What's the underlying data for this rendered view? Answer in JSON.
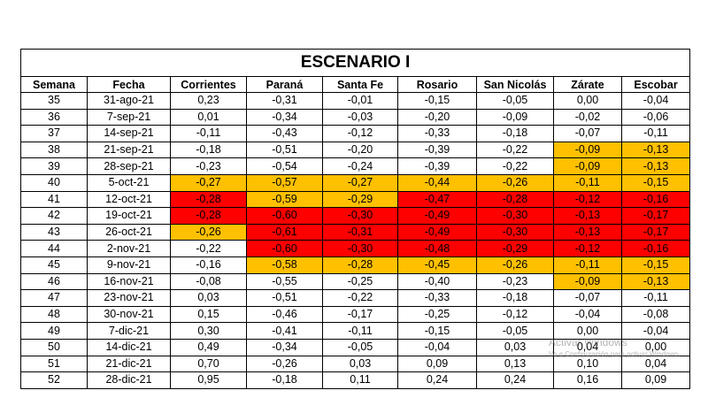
{
  "title": "ESCENARIO I",
  "headers": [
    "Semana",
    "Fecha",
    "Corrientes",
    "Paraná",
    "Santa Fe",
    "Rosario",
    "San Nicolás",
    "Zárate",
    "Escobar"
  ],
  "colors": {
    "orange": "#FFC000",
    "red": "#FF0000"
  },
  "rows": [
    {
      "semana": "35",
      "fecha": "31-ago-21",
      "values": [
        "0,23",
        "-0,31",
        "-0,01",
        "-0,15",
        "-0,05",
        "0,00",
        "-0,04"
      ],
      "fill": [
        "",
        "",
        "",
        "",
        "",
        "",
        ""
      ]
    },
    {
      "semana": "36",
      "fecha": "7-sep-21",
      "values": [
        "0,01",
        "-0,34",
        "-0,03",
        "-0,20",
        "-0,09",
        "-0,02",
        "-0,06"
      ],
      "fill": [
        "",
        "",
        "",
        "",
        "",
        "",
        ""
      ]
    },
    {
      "semana": "37",
      "fecha": "14-sep-21",
      "values": [
        "-0,11",
        "-0,43",
        "-0,12",
        "-0,33",
        "-0,18",
        "-0,07",
        "-0,11"
      ],
      "fill": [
        "",
        "",
        "",
        "",
        "",
        "",
        ""
      ]
    },
    {
      "semana": "38",
      "fecha": "21-sep-21",
      "values": [
        "-0,18",
        "-0,51",
        "-0,20",
        "-0,39",
        "-0,22",
        "-0,09",
        "-0,13"
      ],
      "fill": [
        "",
        "",
        "",
        "",
        "",
        "o",
        "o"
      ]
    },
    {
      "semana": "39",
      "fecha": "28-sep-21",
      "values": [
        "-0,23",
        "-0,54",
        "-0,24",
        "-0,39",
        "-0,22",
        "-0,09",
        "-0,13"
      ],
      "fill": [
        "",
        "",
        "",
        "",
        "",
        "o",
        "o"
      ]
    },
    {
      "semana": "40",
      "fecha": "5-oct-21",
      "values": [
        "-0,27",
        "-0,57",
        "-0,27",
        "-0,44",
        "-0,26",
        "-0,11",
        "-0,15"
      ],
      "fill": [
        "o",
        "o",
        "o",
        "o",
        "o",
        "o",
        "o"
      ]
    },
    {
      "semana": "41",
      "fecha": "12-oct-21",
      "values": [
        "-0,28",
        "-0,59",
        "-0,29",
        "-0,47",
        "-0,28",
        "-0,12",
        "-0,16"
      ],
      "fill": [
        "r",
        "o",
        "o",
        "r",
        "r",
        "r",
        "r"
      ]
    },
    {
      "semana": "42",
      "fecha": "19-oct-21",
      "values": [
        "-0,28",
        "-0,60",
        "-0,30",
        "-0,49",
        "-0,30",
        "-0,13",
        "-0,17"
      ],
      "fill": [
        "r",
        "r",
        "r",
        "r",
        "r",
        "r",
        "r"
      ]
    },
    {
      "semana": "43",
      "fecha": "26-oct-21",
      "values": [
        "-0,26",
        "-0,61",
        "-0,31",
        "-0,49",
        "-0,30",
        "-0,13",
        "-0,17"
      ],
      "fill": [
        "o",
        "r",
        "r",
        "r",
        "r",
        "r",
        "r"
      ]
    },
    {
      "semana": "44",
      "fecha": "2-nov-21",
      "values": [
        "-0,22",
        "-0,60",
        "-0,30",
        "-0,48",
        "-0,29",
        "-0,12",
        "-0,16"
      ],
      "fill": [
        "",
        "r",
        "r",
        "r",
        "r",
        "r",
        "r"
      ]
    },
    {
      "semana": "45",
      "fecha": "9-nov-21",
      "values": [
        "-0,16",
        "-0,58",
        "-0,28",
        "-0,45",
        "-0,26",
        "-0,11",
        "-0,15"
      ],
      "fill": [
        "",
        "o",
        "o",
        "o",
        "o",
        "o",
        "o"
      ]
    },
    {
      "semana": "46",
      "fecha": "16-nov-21",
      "values": [
        "-0,08",
        "-0,55",
        "-0,25",
        "-0,40",
        "-0,23",
        "-0,09",
        "-0,13"
      ],
      "fill": [
        "",
        "",
        "",
        "",
        "",
        "o",
        "o"
      ]
    },
    {
      "semana": "47",
      "fecha": "23-nov-21",
      "values": [
        "0,03",
        "-0,51",
        "-0,22",
        "-0,33",
        "-0,18",
        "-0,07",
        "-0,11"
      ],
      "fill": [
        "",
        "",
        "",
        "",
        "",
        "",
        ""
      ]
    },
    {
      "semana": "48",
      "fecha": "30-nov-21",
      "values": [
        "0,15",
        "-0,46",
        "-0,17",
        "-0,25",
        "-0,12",
        "-0,04",
        "-0,08"
      ],
      "fill": [
        "",
        "",
        "",
        "",
        "",
        "",
        ""
      ]
    },
    {
      "semana": "49",
      "fecha": "7-dic-21",
      "values": [
        "0,30",
        "-0,41",
        "-0,11",
        "-0,15",
        "-0,05",
        "0,00",
        "-0,04"
      ],
      "fill": [
        "",
        "",
        "",
        "",
        "",
        "",
        ""
      ]
    },
    {
      "semana": "50",
      "fecha": "14-dic-21",
      "values": [
        "0,49",
        "-0,34",
        "-0,05",
        "-0,04",
        "0,03",
        "0,04",
        "0,00"
      ],
      "fill": [
        "",
        "",
        "",
        "",
        "",
        "",
        ""
      ]
    },
    {
      "semana": "51",
      "fecha": "21-dic-21",
      "values": [
        "0,70",
        "-0,26",
        "0,03",
        "0,09",
        "0,13",
        "0,10",
        "0,04"
      ],
      "fill": [
        "",
        "",
        "",
        "",
        "",
        "",
        ""
      ]
    },
    {
      "semana": "52",
      "fecha": "28-dic-21",
      "values": [
        "0,95",
        "-0,18",
        "0,11",
        "0,24",
        "0,24",
        "0,16",
        "0,09"
      ],
      "fill": [
        "",
        "",
        "",
        "",
        "",
        "",
        ""
      ]
    }
  ],
  "watermark": {
    "line1": "Activar Windows",
    "line2": "Ve a Configuración para activar Windows."
  }
}
